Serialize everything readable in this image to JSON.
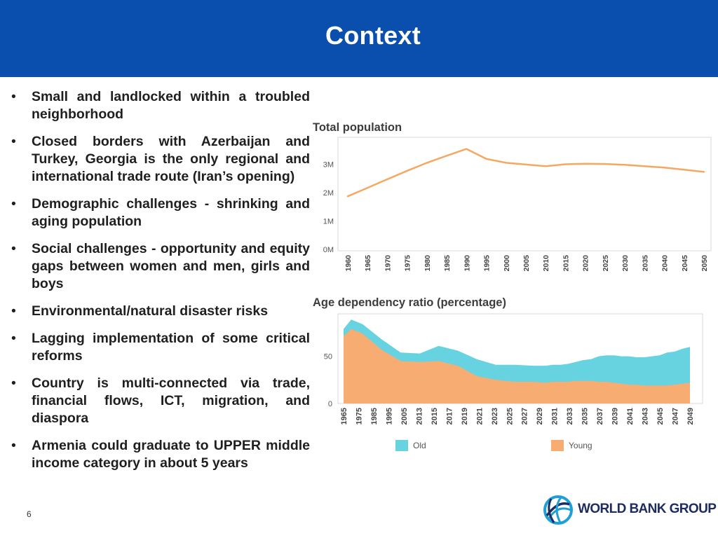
{
  "header": {
    "title": "Context"
  },
  "bullets": [
    "Small and landlocked within a troubled neighborhood",
    "Closed borders with Azerbaijan and Turkey, Georgia is the only regional and international trade route (Iran’s opening)",
    "Demographic challenges - shrinking and aging population",
    "Social challenges - opportunity and equity gaps between women and men, girls and boys",
    "Environmental/natural disaster risks",
    "Lagging implementation of some critical reforms",
    "Country is multi-connected via trade, financial flows, ICT, migration, and diaspora",
    "Armenia could graduate to UPPER middle income category in about 5 years"
  ],
  "bullet_symbol": "•",
  "page_number": "6",
  "logo": {
    "text": "WORLD BANK GROUP",
    "color": "#1d2c5e"
  },
  "colors": {
    "header": "#0a4fae",
    "line": "#f5a862",
    "old": "#67d3e0",
    "young": "#f7ac72"
  },
  "chart_data": [
    {
      "type": "line",
      "title": "Total population",
      "x": [
        "1960",
        "1965",
        "1970",
        "1975",
        "1980",
        "1985",
        "1990",
        "1995",
        "2000",
        "2005",
        "2010",
        "2015",
        "2020",
        "2025",
        "2030",
        "2035",
        "2040",
        "2045",
        "2050"
      ],
      "values": [
        1.87,
        2.17,
        2.47,
        2.77,
        3.05,
        3.3,
        3.54,
        3.19,
        3.05,
        2.99,
        2.93,
        3.0,
        3.02,
        3.01,
        2.98,
        2.93,
        2.88,
        2.81,
        2.73
      ],
      "ylim": [
        0,
        3.9
      ],
      "yticks": [
        0,
        1,
        2,
        3
      ],
      "ytick_labels": [
        "0M",
        "1M",
        "2M",
        "3M"
      ]
    },
    {
      "type": "area",
      "title": "Age dependency ratio (percentage)",
      "x_labels": [
        "1965",
        "1975",
        "1985",
        "1995",
        "2005",
        "2013",
        "2015",
        "2017",
        "2019",
        "2021",
        "2023",
        "2025",
        "2027",
        "2029",
        "2031",
        "2033",
        "2035",
        "2037",
        "2039",
        "2041",
        "2043",
        "2045",
        "2047",
        "2049"
      ],
      "x": [
        1960,
        1962,
        1965,
        1970,
        1975,
        1980,
        1985,
        1990,
        1995,
        2000,
        2005,
        2010,
        2013,
        2015,
        2017,
        2019,
        2021,
        2023,
        2025,
        2027,
        2029,
        2031,
        2033,
        2035,
        2037,
        2039,
        2041,
        2043,
        2045,
        2047,
        2049,
        2051
      ],
      "series": [
        {
          "name": "Young",
          "values": [
            71,
            79,
            74,
            57,
            45,
            44,
            45,
            40,
            29,
            25,
            23,
            23,
            22,
            23,
            23,
            23,
            24,
            24,
            24,
            23,
            23,
            22,
            21,
            20,
            20,
            19,
            19,
            19,
            19,
            20,
            21,
            22
          ]
        },
        {
          "name": "Old",
          "values": [
            79,
            89,
            84,
            68,
            54,
            53,
            61,
            56,
            47,
            41,
            41,
            40,
            40,
            41,
            41,
            42,
            44,
            46,
            47,
            50,
            51,
            51,
            50,
            50,
            49,
            49,
            50,
            51,
            54,
            55,
            58,
            60
          ]
        }
      ],
      "ylim": [
        0,
        95
      ],
      "yticks": [
        0,
        50
      ],
      "ytick_labels": [
        "0",
        "50"
      ],
      "legend": [
        "Old",
        "Young"
      ],
      "legend_position": "bottom"
    }
  ]
}
